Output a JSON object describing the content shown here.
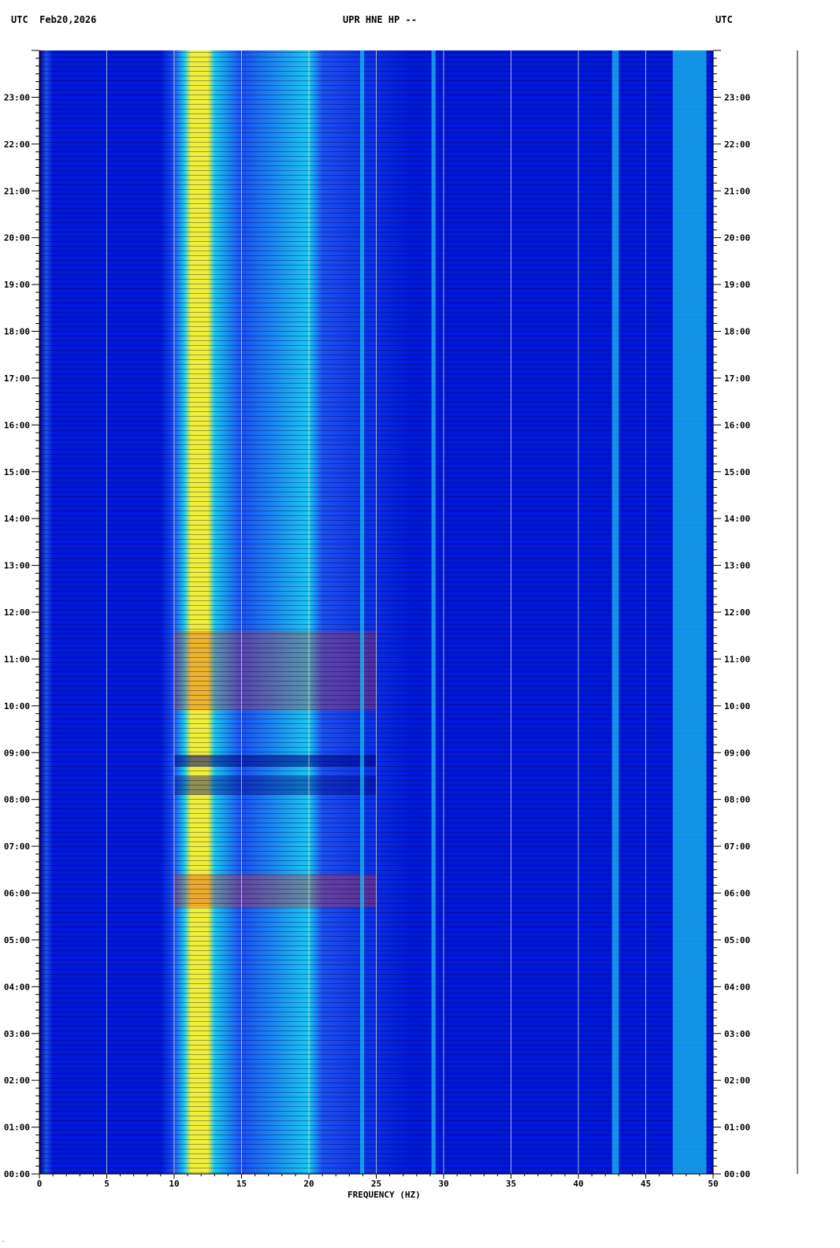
{
  "header": {
    "left_label": "UTC  Feb20,2026",
    "center_label": "UPR HNE HP --",
    "right_label": "UTC"
  },
  "chart_data": {
    "type": "heatmap",
    "title": "UPR HNE HP --",
    "date": "Feb20,2026",
    "xlabel": "FREQUENCY (HZ)",
    "ylabel": "UTC",
    "xlim": [
      0,
      50
    ],
    "ylim_hours": [
      0,
      24
    ],
    "x_ticks": [
      0,
      5,
      10,
      15,
      20,
      25,
      30,
      35,
      40,
      45,
      50
    ],
    "y_ticks": [
      "00:00",
      "01:00",
      "02:00",
      "03:00",
      "04:00",
      "05:00",
      "06:00",
      "07:00",
      "08:00",
      "09:00",
      "10:00",
      "11:00",
      "12:00",
      "13:00",
      "14:00",
      "15:00",
      "16:00",
      "17:00",
      "18:00",
      "19:00",
      "20:00",
      "21:00",
      "22:00",
      "23:00"
    ],
    "grid_x": true,
    "colormap": [
      "#00007a",
      "#0018d8",
      "#1b4ff0",
      "#19c8ef",
      "#f0ee3a",
      "#e42a10",
      "#7a0000"
    ],
    "dominant_bands_hz": [
      {
        "from": 10.5,
        "to": 13.0,
        "level": "high"
      },
      {
        "from": 13.0,
        "to": 20.0,
        "level": "medium"
      },
      {
        "from": 23.8,
        "to": 24.1,
        "level": "line"
      },
      {
        "from": 29.1,
        "to": 29.4,
        "level": "line"
      },
      {
        "from": 42.5,
        "to": 43.0,
        "level": "line"
      },
      {
        "from": 47.0,
        "to": 49.5,
        "level": "line"
      }
    ]
  },
  "footnote": "."
}
